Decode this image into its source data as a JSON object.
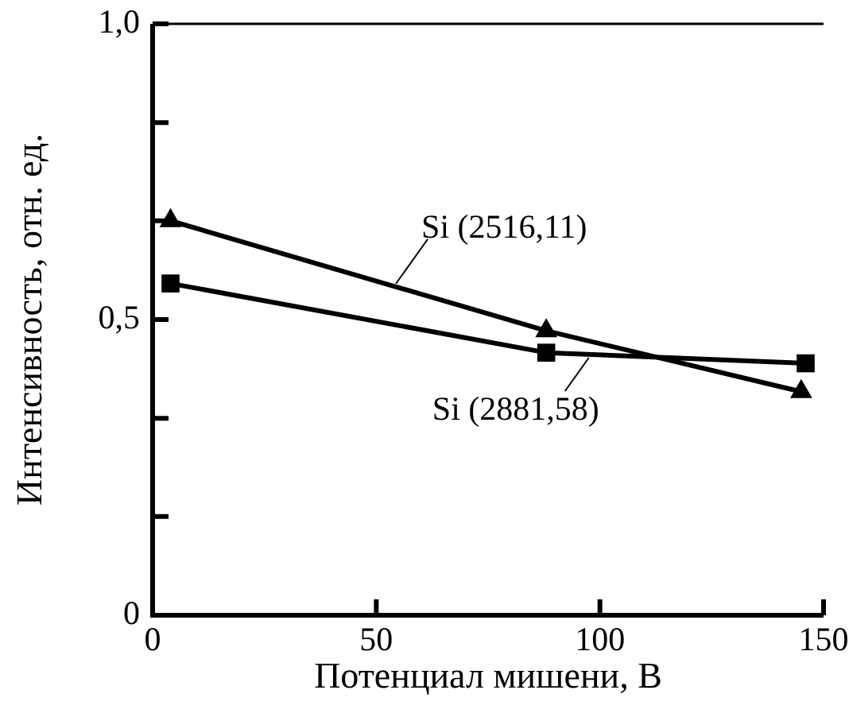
{
  "chart_data": {
    "type": "line",
    "xlabel": "Потенциал мишени, В",
    "ylabel": "Интенсивность, отн. ед.",
    "xlim": [
      0,
      150
    ],
    "xticks": [
      0,
      50,
      100,
      150
    ],
    "ylim": [
      0,
      1
    ],
    "yticks": [
      {
        "value": 0,
        "label": "0"
      },
      {
        "value": 0.167,
        "label": null
      },
      {
        "value": 0.333,
        "label": null
      },
      {
        "value": 0.5,
        "label": "0,5"
      },
      {
        "value": 0.667,
        "label": null
      },
      {
        "value": 0.833,
        "label": null
      },
      {
        "value": 1,
        "label": "1,0"
      }
    ],
    "grid": false,
    "line_style": "solid",
    "series": [
      {
        "name": "Si (2516,11)",
        "color": "#000000",
        "marker": "triangle",
        "x": [
          4,
          88,
          145
        ],
        "values": [
          0.667,
          0.481,
          0.378
        ]
      },
      {
        "name": "Si (2881,58)",
        "color": "#000000",
        "marker": "square",
        "x": [
          4,
          88,
          146
        ],
        "values": [
          0.561,
          0.444,
          0.426
        ]
      }
    ]
  }
}
